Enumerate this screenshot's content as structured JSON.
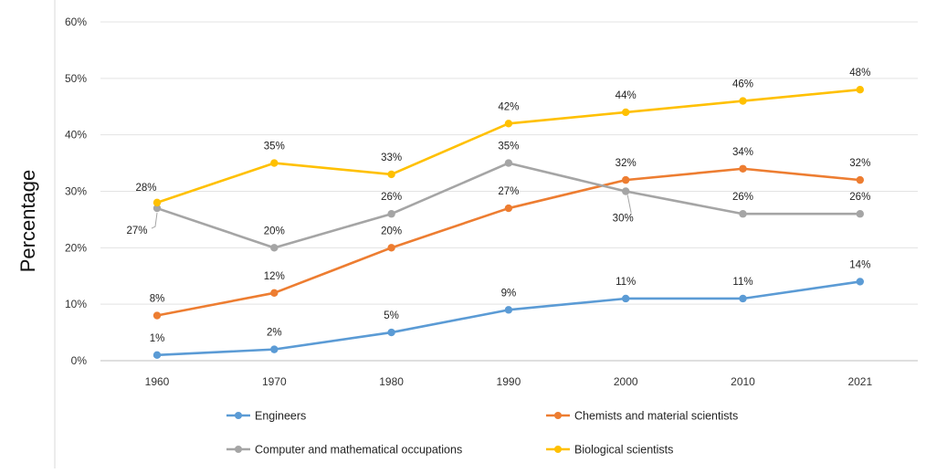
{
  "chart_data": {
    "type": "line",
    "title": "",
    "xlabel": "",
    "ylabel": "Percentage",
    "categories": [
      "1960",
      "1970",
      "1980",
      "1990",
      "2000",
      "2010",
      "2021"
    ],
    "ylim": [
      0,
      60
    ],
    "yticks": [
      "0%",
      "10%",
      "20%",
      "30%",
      "40%",
      "50%",
      "60%"
    ],
    "grid": true,
    "legend_position": "bottom",
    "series": [
      {
        "name": "Engineers",
        "color": "#5b9bd5",
        "values": [
          1,
          2,
          5,
          9,
          11,
          11,
          14
        ],
        "labels": [
          "1%",
          "2%",
          "5%",
          "9%",
          "11%",
          "11%",
          "14%"
        ]
      },
      {
        "name": "Chemists and material scientists",
        "color": "#ed7d31",
        "values": [
          8,
          12,
          20,
          27,
          32,
          34,
          32
        ],
        "labels": [
          "8%",
          "12%",
          "20%",
          "27%",
          "32%",
          "34%",
          "32%"
        ]
      },
      {
        "name": "Computer and mathematical occupations",
        "color": "#a5a5a5",
        "values": [
          27,
          20,
          26,
          35,
          30,
          26,
          26
        ],
        "labels": [
          "27%",
          "20%",
          "26%",
          "35%",
          "30%",
          "26%",
          "26%"
        ]
      },
      {
        "name": "Biological scientists",
        "color": "#ffc000",
        "values": [
          28,
          35,
          33,
          42,
          44,
          46,
          48
        ],
        "labels": [
          "28%",
          "35%",
          "33%",
          "42%",
          "44%",
          "46%",
          "48%"
        ]
      }
    ]
  }
}
